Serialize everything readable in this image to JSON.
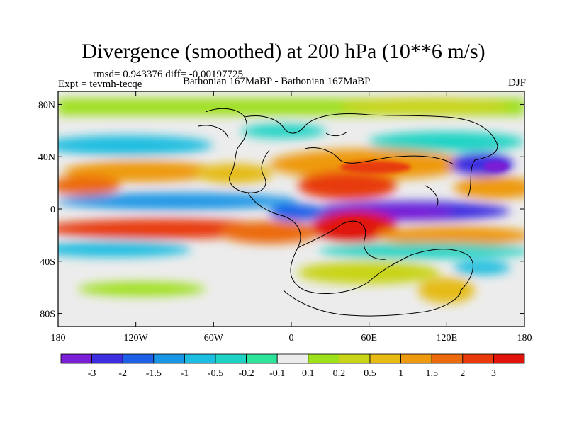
{
  "title": "Divergence (smoothed) at 200 hPa (10**6 m/s)",
  "stats": "rmsd= 0.943376 diff= -0.00197725",
  "experiment": "Expt = tevmh-tecqe",
  "period": "Bathonian 167MaBP - Bathonian 167MaBP",
  "season": "DJF",
  "map": {
    "lat_ticks": [
      {
        "label": "80N",
        "lat": 80
      },
      {
        "label": "40N",
        "lat": 40
      },
      {
        "label": "0",
        "lat": 0
      },
      {
        "label": "40S",
        "lat": -40
      },
      {
        "label": "80S",
        "lat": -80
      }
    ],
    "lon_ticks": [
      {
        "label": "180",
        "lon": -180
      },
      {
        "label": "120W",
        "lon": -120
      },
      {
        "label": "60W",
        "lon": -60
      },
      {
        "label": "0",
        "lon": 0
      },
      {
        "label": "60E",
        "lon": 60
      },
      {
        "label": "120E",
        "lon": 120
      },
      {
        "label": "180",
        "lon": 180
      }
    ]
  },
  "colorbar": {
    "colors": [
      "#7a1fd6",
      "#3d2ee0",
      "#1e5fe8",
      "#1a96e6",
      "#1cbde0",
      "#1fd3c4",
      "#2ee39a",
      "#ececec",
      "#9ee01a",
      "#c8d418",
      "#e5bb14",
      "#ee9a10",
      "#ec6a0c",
      "#e83a0a",
      "#e0140a"
    ],
    "labels": [
      "-3",
      "-2",
      "-1.5",
      "-1",
      "-0.5",
      "-0.2",
      "-0.1",
      "0.1",
      "0.2",
      "0.5",
      "1",
      "1.5",
      "2",
      "3"
    ]
  }
}
